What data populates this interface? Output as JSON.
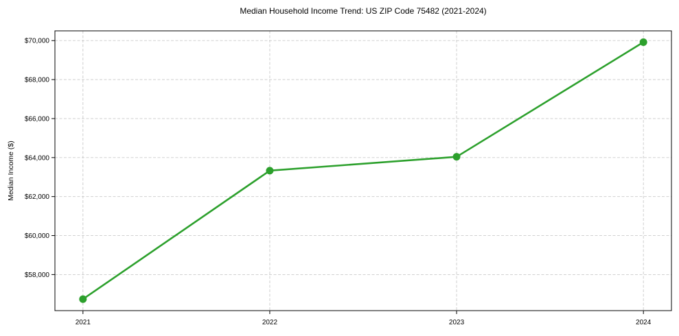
{
  "chart_data": {
    "type": "line",
    "title": "Median Household Income Trend: US ZIP Code 75482 (2021-2024)",
    "xlabel": "",
    "ylabel": "Median Income ($)",
    "categories": [
      2021,
      2022,
      2023,
      2024
    ],
    "x_tick_labels": [
      "2021",
      "2022",
      "2023",
      "2024"
    ],
    "y_ticks": [
      58000,
      60000,
      62000,
      64000,
      66000,
      68000,
      70000
    ],
    "y_tick_labels": [
      "$58,000",
      "$60,000",
      "$62,000",
      "$64,000",
      "$66,000",
      "$68,000",
      "$70,000"
    ],
    "series": [
      {
        "name": "Median Household Income",
        "values": [
          56740,
          63330,
          64040,
          69920
        ],
        "color": "#2ca02c",
        "marker": "circle"
      }
    ],
    "xlim": [
      2020.85,
      2024.15
    ],
    "ylim": [
      56150,
      70500
    ],
    "grid": true,
    "grid_style": "dashed",
    "legend": "none",
    "colors": {
      "line": "#2ca02c",
      "grid": "#c9c9c9",
      "spine": "#000000",
      "text": "#000000",
      "background": "#ffffff"
    }
  }
}
